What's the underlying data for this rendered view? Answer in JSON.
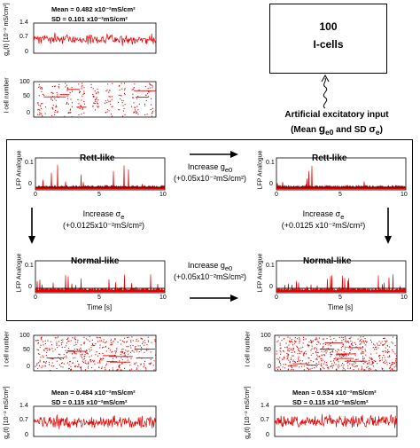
{
  "colors": {
    "trace": "#e00000",
    "mean_line": "#1a1a1a",
    "axis": "#000000"
  },
  "icells_box": {
    "count": "100",
    "label": "I-cells"
  },
  "input_caption": {
    "line1": "Artificial excitatory input",
    "line2_prefix": "(Mean ",
    "g_symbol": "g",
    "g_sub": "e0",
    "line2_mid": " and SD ",
    "sigma": "σ",
    "sigma_sub": "e",
    "line2_suffix": ")"
  },
  "top_block": {
    "conductance": {
      "ylabel": "g",
      "ylabel_sub": "e",
      "ylabel_rest": "(t) [10⁻² mS/cm²]",
      "yticks": [
        "1.4",
        "0.7",
        "0"
      ],
      "mean_text": "Mean = 0.482 x10⁻²mS/cm²",
      "sd_text": "SD = 0.101 x10⁻²mS/cm²"
    },
    "raster": {
      "ylabel": "I cell number",
      "yticks": [
        "100",
        "50",
        "0"
      ]
    }
  },
  "bottom_left": {
    "raster": {
      "ylabel": "I cell number",
      "yticks": [
        "100",
        "50",
        "0"
      ]
    },
    "conductance": {
      "ylabel": "g",
      "ylabel_sub": "e",
      "ylabel_rest": "(t) [10⁻² mS/cm²]",
      "yticks": [
        "1.4",
        "0.7",
        "0"
      ],
      "mean_text": "Mean = 0.484 x10⁻²mS/cm²",
      "sd_text": "SD = 0.115 x10⁻²mS/cm²"
    }
  },
  "bottom_right": {
    "raster": {
      "ylabel": "I cell number",
      "yticks": [
        "100",
        "50",
        "0"
      ]
    },
    "conductance": {
      "ylabel": "g",
      "ylabel_sub": "e",
      "ylabel_rest": "(t) [10⁻² mS/cm²]",
      "yticks": [
        "1.4",
        "0.7",
        "0"
      ],
      "mean_text": "Mean = 0.534 x10⁻²mS/cm²",
      "sd_text": "SD = 0.115 x10⁻²mS/cm²"
    }
  },
  "center_box": {
    "lfp_ylabel": "LFP Analogue",
    "lfp_yticks": [
      "0.1",
      "0"
    ],
    "xticks": [
      "0",
      "5",
      "10"
    ],
    "xlabel": "Time [s]",
    "rett_left_title": "Rett-like",
    "rett_right_title": "Rett-like",
    "normal_left_title": "Normal-like",
    "normal_right_title": "Normal-like",
    "arrow_top": {
      "line1_prefix": "Increase g",
      "line1_sub": "e0",
      "line2": "(+0.05x10⁻²mS/cm²)"
    },
    "arrow_bottom": {
      "line1_prefix": "Increase g",
      "line1_sub": "e0",
      "line2": "(+0.05x10⁻²mS/cm²)"
    },
    "arrow_left": {
      "line1_prefix": "Increase σ",
      "line1_sub": "e",
      "line2": "(+0.0125x10⁻²mS/cm²)"
    },
    "arrow_right": {
      "line1_prefix": "Increase σ",
      "line1_sub": "e",
      "line2": "(+0.0125 x10⁻²mS/cm²)"
    }
  }
}
